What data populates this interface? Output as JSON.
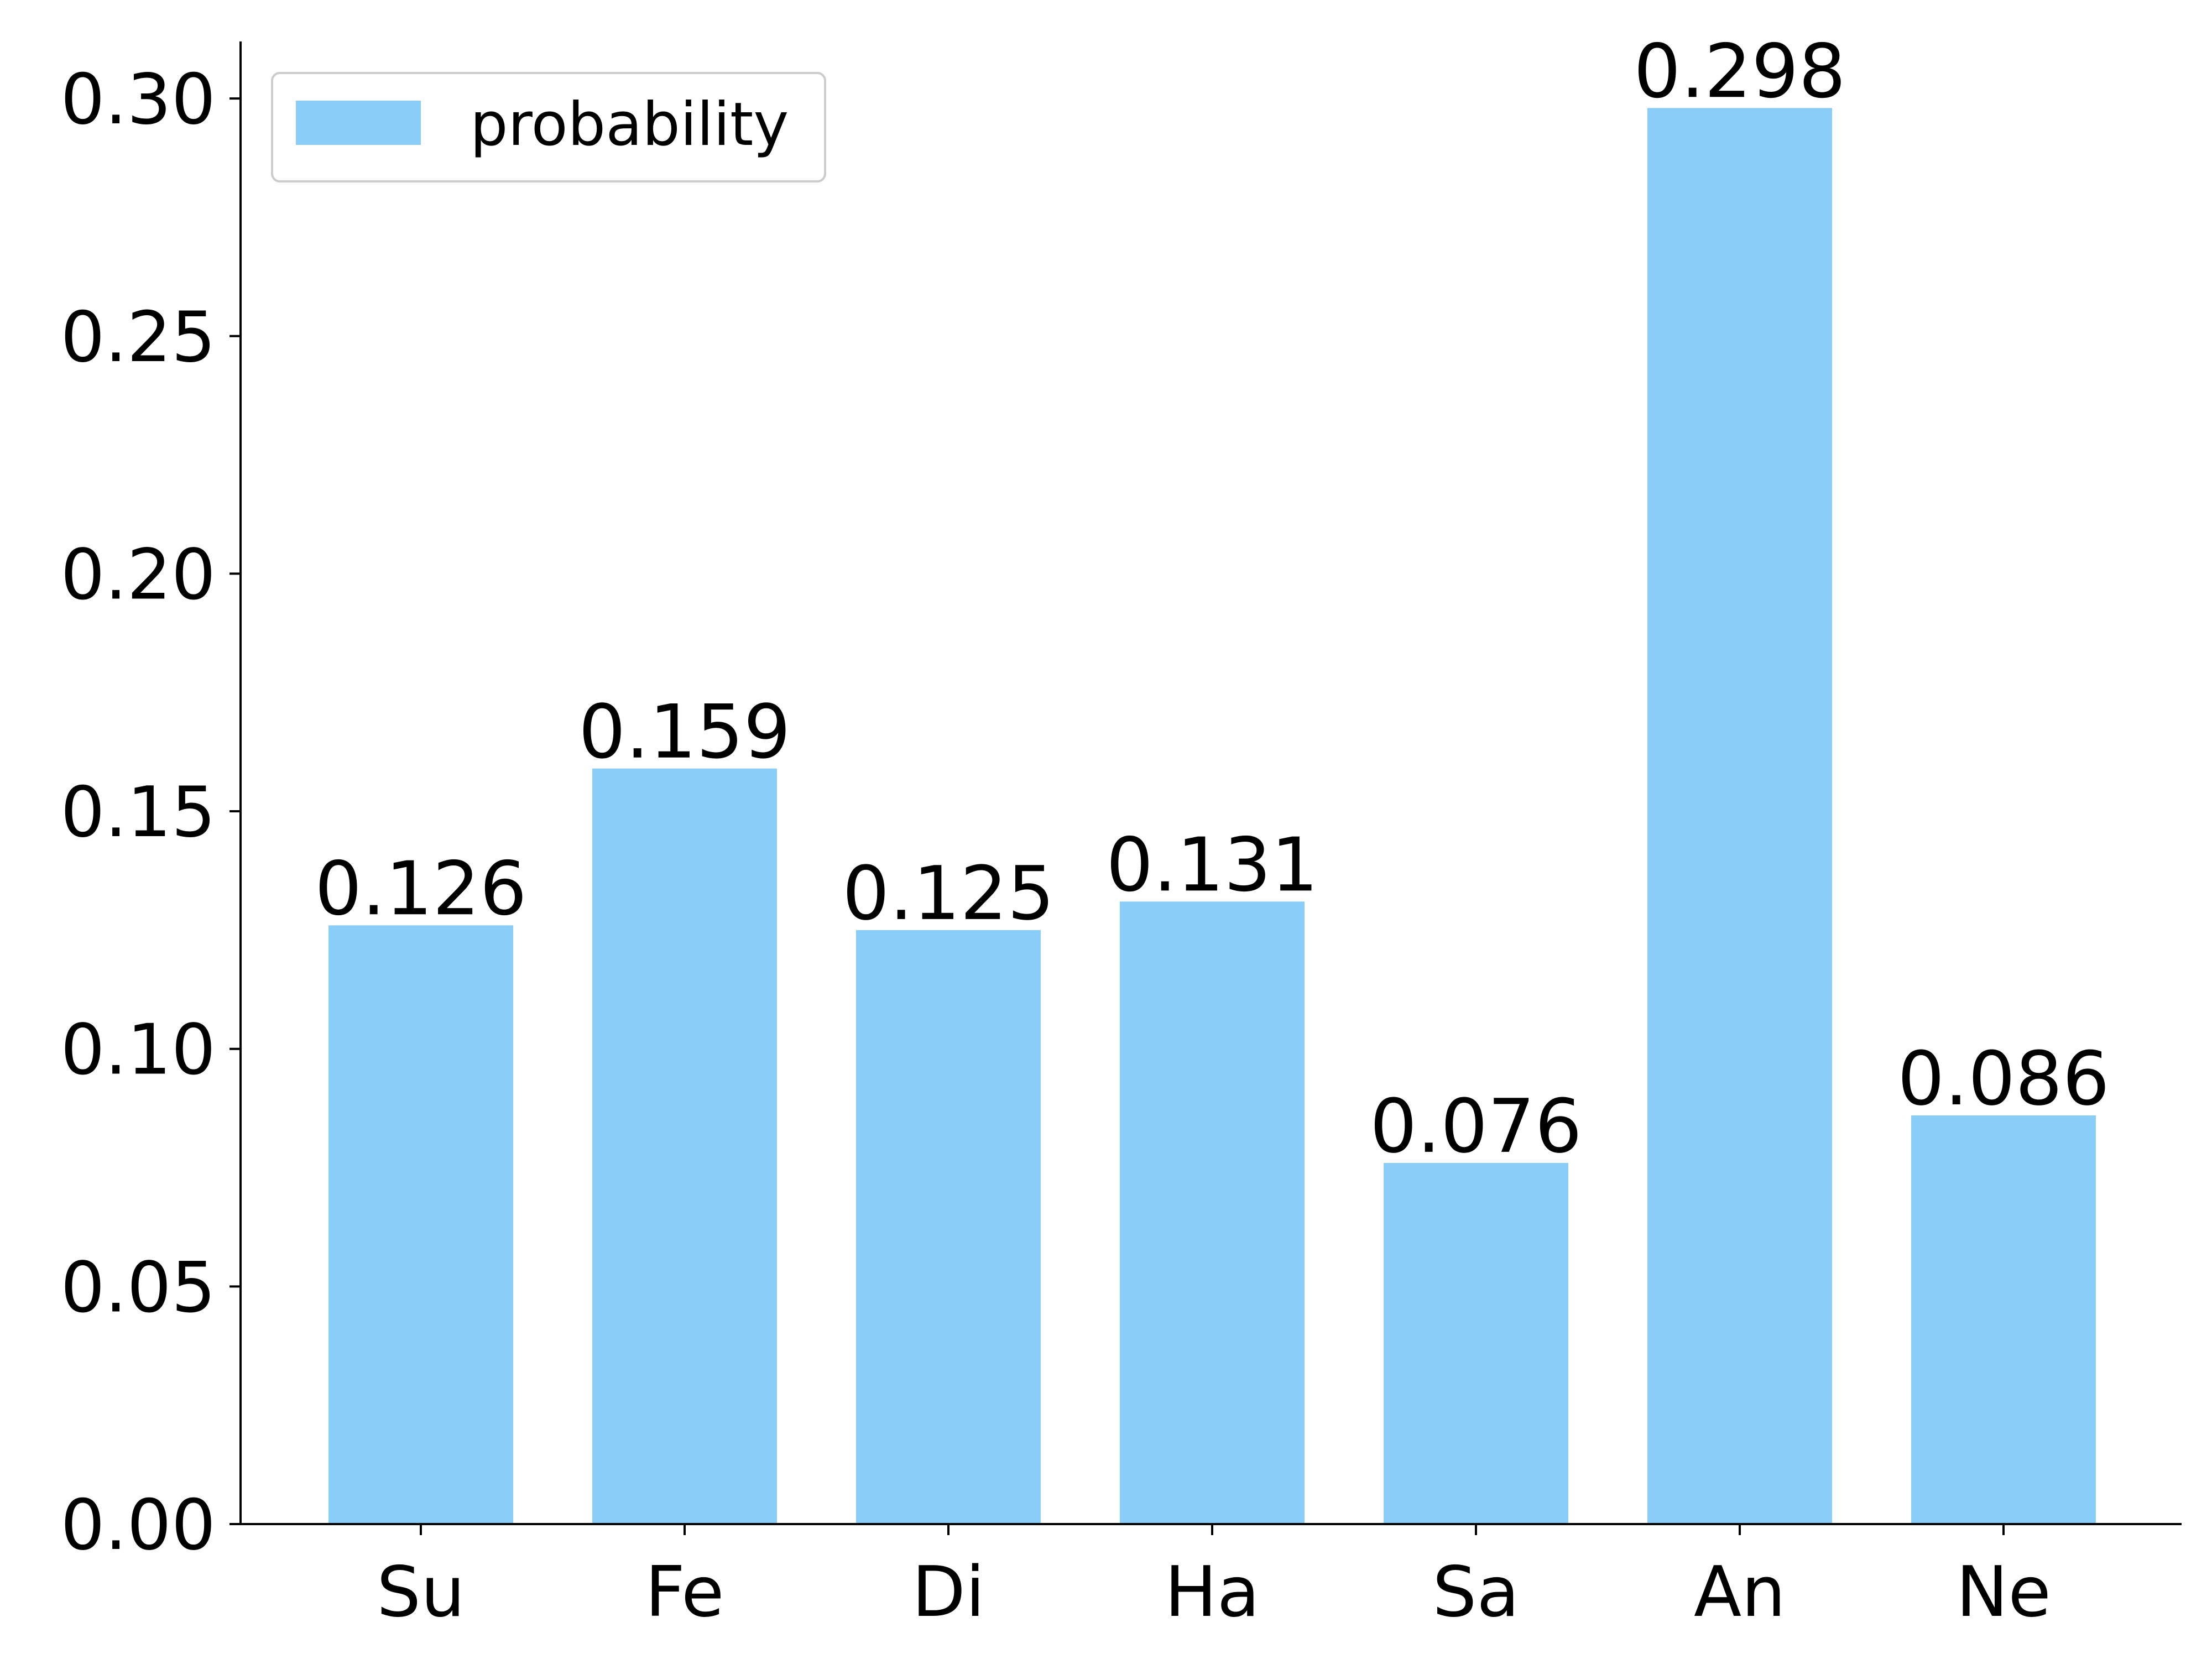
{
  "chart_data": {
    "type": "bar",
    "categories": [
      "Su",
      "Fe",
      "Di",
      "Ha",
      "Sa",
      "An",
      "Ne"
    ],
    "series": [
      {
        "name": "probability",
        "values": [
          0.126,
          0.159,
          0.125,
          0.131,
          0.076,
          0.298,
          0.086
        ],
        "labels": [
          "0.126",
          "0.159",
          "0.125",
          "0.131",
          "0.076",
          "0.298",
          "0.086"
        ],
        "color": "#89cdf8"
      }
    ],
    "title": "",
    "xlabel": "",
    "ylabel": "",
    "ylim": [
      0,
      0.312
    ],
    "yticks": [
      0.0,
      0.05,
      0.1,
      0.15,
      0.2,
      0.25,
      0.3
    ],
    "ytick_labels": [
      "0.00",
      "0.05",
      "0.10",
      "0.15",
      "0.20",
      "0.25",
      "0.30"
    ],
    "grid": false,
    "legend": {
      "position": "top-left",
      "entries": [
        "probability"
      ]
    },
    "colors": {
      "bar": "#89cdf8",
      "axis": "#000000",
      "legend_border": "#cccccc"
    }
  }
}
